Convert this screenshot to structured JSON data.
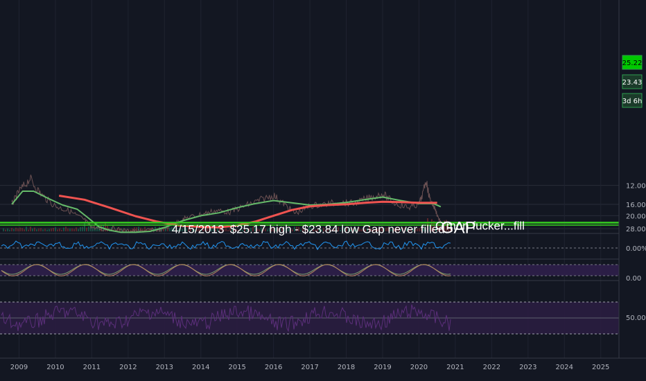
{
  "chart_data": {
    "type": "line",
    "price_axis": {
      "ticks": [
        "28.00",
        "20.00",
        "16.00",
        "12.00"
      ]
    },
    "x_ticks": [
      "2009",
      "2010",
      "2011",
      "2012",
      "2013",
      "2014",
      "2015",
      "2016",
      "2017",
      "2018",
      "2019",
      "2020",
      "2021",
      "2022",
      "2023",
      "2024",
      "2025"
    ],
    "price_badges": [
      {
        "label": "25.22",
        "color": "#00c800",
        "text_color": "#000000"
      },
      {
        "label": "23.43",
        "color": "#1b3b2a",
        "text_color": "#ffffff"
      },
      {
        "label": "3d 6h",
        "color": "#1b3b2a",
        "text_color": "#ffffff"
      }
    ],
    "horizontal_lines": [
      {
        "value": 25.22,
        "color": "#35c820"
      },
      {
        "value": 23.84,
        "color": "#35c820"
      },
      {
        "value": 23.43,
        "color": "#35c820"
      }
    ],
    "series": [
      {
        "role": "price",
        "color": "#7d5c5c",
        "x": [
          2008.8,
          2009.0,
          2009.3,
          2009.6,
          2010.0,
          2010.4,
          2010.8,
          2011.0,
          2011.3,
          2011.6,
          2012.0,
          2012.3,
          2012.6,
          2012.9,
          2013.3,
          2013.6,
          2014.0,
          2014.4,
          2014.8,
          2015.2,
          2015.6,
          2016.0,
          2016.3,
          2016.6,
          2017.0,
          2017.4,
          2017.8,
          2018.2,
          2018.6,
          2019.0,
          2019.3,
          2019.7,
          2020.0,
          2020.2,
          2020.3,
          2020.45,
          2020.6
        ],
        "y": [
          16.0,
          13.0,
          11.0,
          13.5,
          16.5,
          18.2,
          22.0,
          26.5,
          29.0,
          27.5,
          30.0,
          30.5,
          29.0,
          29.5,
          24.0,
          21.0,
          19.5,
          18.0,
          18.5,
          16.5,
          15.0,
          13.8,
          16.0,
          19.0,
          16.5,
          16.0,
          15.5,
          15.8,
          14.5,
          13.5,
          15.5,
          17.0,
          16.0,
          11.2,
          14.5,
          17.5,
          23.5
        ]
      },
      {
        "role": "ma-fast",
        "color": "#66bb6a",
        "x": [
          2008.8,
          2009.1,
          2009.4,
          2009.8,
          2010.2,
          2010.6,
          2010.9,
          2011.2,
          2011.5,
          2011.8,
          2012.2,
          2012.6,
          2013.0,
          2013.5,
          2014.0,
          2014.5,
          2015.0,
          2015.5,
          2016.0,
          2016.5,
          2017.0,
          2017.5,
          2018.0,
          2018.5,
          2019.0,
          2019.5,
          2020.0,
          2020.4,
          2020.6
        ],
        "y": [
          16.0,
          13.0,
          13.0,
          14.5,
          16.2,
          17.5,
          21.0,
          26.5,
          29.5,
          31.5,
          31.5,
          30.5,
          27.0,
          22.5,
          20.0,
          18.8,
          17.0,
          15.8,
          15.0,
          15.6,
          16.2,
          16.0,
          15.5,
          14.8,
          14.2,
          15.0,
          15.8,
          15.8,
          16.7
        ]
      },
      {
        "role": "ma-slow",
        "color": "#ef5350",
        "x": [
          2010.1,
          2010.8,
          2011.5,
          2012.2,
          2012.8,
          2013.4,
          2014.0,
          2014.5,
          2015.0,
          2015.5,
          2016.0,
          2016.5,
          2017.0,
          2017.5,
          2018.0,
          2018.5,
          2019.0,
          2019.5,
          2020.0,
          2020.5
        ],
        "y": [
          13.9,
          14.8,
          17.0,
          20.2,
          23.0,
          25.5,
          26.6,
          26.9,
          25.5,
          23.0,
          20.0,
          17.8,
          16.6,
          16.2,
          16.0,
          15.6,
          15.3,
          15.4,
          15.6,
          15.6
        ]
      }
    ],
    "annotations": [
      {
        "text": "4/15/2013",
        "x": 2013.2,
        "y": 23.2
      },
      {
        "text": "$25.17 high - $23.84 low Gap never filled.",
        "x": 2014.8,
        "y": 23.2
      },
      {
        "text": "GAP",
        "x": 2020.6,
        "y": 23.2
      },
      {
        "text": "C'mon fucker...fill",
        "x": 2020.45,
        "y": 21.3
      }
    ],
    "indicators": [
      {
        "name": "oscillator",
        "tick": "0.00%"
      },
      {
        "name": "stochastic",
        "tick": "0.00"
      },
      {
        "name": "rsi",
        "tick": "50.00"
      }
    ]
  }
}
